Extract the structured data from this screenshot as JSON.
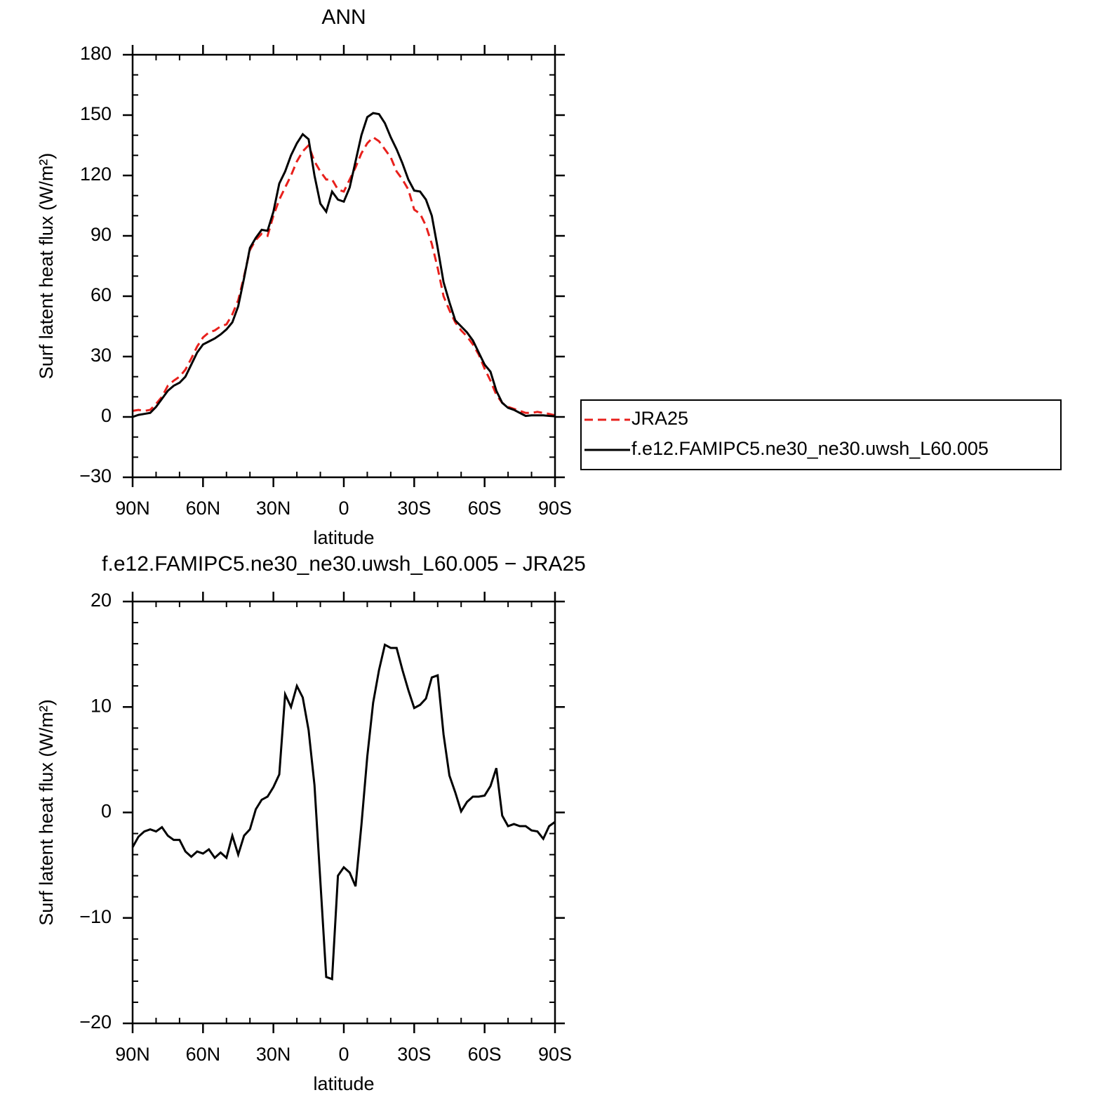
{
  "chart_data": [
    {
      "type": "line",
      "title": "ANN",
      "xlabel": "latitude",
      "ylabel": "Surf latent heat flux (W/m²)",
      "x": [
        90,
        87.5,
        85,
        82.5,
        80,
        77.5,
        75,
        72.5,
        70,
        67.5,
        65,
        62.5,
        60,
        57.5,
        55,
        52.5,
        50,
        47.5,
        45,
        42.5,
        40,
        37.5,
        35,
        32.5,
        30,
        27.5,
        25,
        22.5,
        20,
        17.5,
        15,
        12.5,
        10,
        7.5,
        5,
        2.5,
        0,
        -2.5,
        -5,
        -7.5,
        -10,
        -12.5,
        -15,
        -17.5,
        -20,
        -22.5,
        -25,
        -27.5,
        -30,
        -32.5,
        -35,
        -37.5,
        -40,
        -42.5,
        -45,
        -47.5,
        -50,
        -52.5,
        -55,
        -57.5,
        -60,
        -62.5,
        -65,
        -67.5,
        -70,
        -72.5,
        -75,
        -77.5,
        -80,
        -82.5,
        -85,
        -87.5,
        -90
      ],
      "series": [
        {
          "name": "JRA25",
          "color": "#e8201c",
          "dash": "dashed",
          "values": [
            3,
            3.5,
            3,
            3.5,
            6.5,
            10,
            15.5,
            18,
            20,
            23.5,
            29,
            35,
            39.5,
            42,
            43,
            45,
            46,
            51,
            58,
            70,
            83,
            88,
            91,
            90,
            100,
            108,
            114,
            120,
            127,
            132,
            135,
            127,
            122,
            118,
            118,
            113,
            112,
            118,
            124,
            131,
            136,
            139,
            137,
            133,
            129,
            122,
            118,
            113,
            103,
            101,
            95,
            86,
            74,
            60,
            53,
            47,
            43,
            40,
            36,
            31,
            24,
            18,
            11,
            7,
            5,
            4,
            3,
            2,
            2,
            2.5,
            2,
            1.5,
            0.8
          ]
        },
        {
          "name": "f.e12.FAMIPC5.ne30_ne30.uwsh_L60.005",
          "color": "#000000",
          "dash": "solid",
          "values": [
            0,
            1,
            1.5,
            2,
            5,
            9,
            13,
            15.5,
            17,
            20,
            26,
            32,
            36,
            37.5,
            39,
            41,
            43.5,
            47,
            55,
            69,
            84,
            89,
            93,
            92.5,
            102,
            116,
            122,
            130,
            136,
            140.5,
            138,
            120,
            106,
            102,
            112,
            108,
            107,
            114,
            127,
            140,
            149,
            151,
            150.5,
            146,
            139,
            133,
            126,
            118,
            112.5,
            112,
            108,
            100,
            84,
            67,
            57,
            48,
            45,
            42,
            38,
            32,
            26,
            22.5,
            13,
            7,
            4.5,
            3.5,
            2,
            0.5,
            0.8,
            0.8,
            0.8,
            0.5,
            0.3
          ]
        }
      ],
      "xlim": [
        90,
        -90
      ],
      "xticks": [
        {
          "value": 90,
          "label": "90N"
        },
        {
          "value": 60,
          "label": "60N"
        },
        {
          "value": 30,
          "label": "30N"
        },
        0,
        {
          "value": -30,
          "label": "30S"
        },
        {
          "value": -60,
          "label": "60S"
        },
        {
          "value": -90,
          "label": "90S"
        }
      ],
      "xminorticks": [
        80,
        70,
        50,
        40,
        20,
        10,
        -10,
        -20,
        -40,
        -50,
        -70,
        -80
      ],
      "ylim": [
        -30,
        180
      ],
      "yticks": [
        -30,
        0,
        30,
        60,
        90,
        120,
        150,
        180
      ],
      "yminorticks": [
        -20,
        -10,
        10,
        20,
        40,
        50,
        70,
        80,
        100,
        110,
        130,
        140,
        160,
        170
      ],
      "legend": "right"
    },
    {
      "type": "line",
      "title": "f.e12.FAMIPC5.ne30_ne30.uwsh_L60.005 − JRA25",
      "xlabel": "latitude",
      "ylabel": "Surf latent heat flux (W/m²)",
      "x": [
        90,
        87.5,
        85,
        82.5,
        80,
        77.5,
        75,
        72.5,
        70,
        67.5,
        65,
        62.5,
        60,
        57.5,
        55,
        52.5,
        50,
        47.5,
        45,
        42.5,
        40,
        37.5,
        35,
        32.5,
        30,
        27.5,
        25,
        22.5,
        20,
        17.5,
        15,
        12.5,
        10,
        7.5,
        5,
        2.5,
        0,
        -2.5,
        -5,
        -7.5,
        -10,
        -12.5,
        -15,
        -17.5,
        -20,
        -22.5,
        -25,
        -27.5,
        -30,
        -32.5,
        -35,
        -37.5,
        -40,
        -42.5,
        -45,
        -47.5,
        -50,
        -52.5,
        -55,
        -57.5,
        -60,
        -62.5,
        -65,
        -67.5,
        -70,
        -72.5,
        -75,
        -77.5,
        -80,
        -82.5,
        -85,
        -87.5,
        -90
      ],
      "color": "#000000",
      "values": [
        -3.3,
        -2.3,
        -1.8,
        -1.6,
        -1.8,
        -1.4,
        -2.2,
        -2.6,
        -2.6,
        -3.7,
        -4.2,
        -3.7,
        -3.9,
        -3.5,
        -4.3,
        -3.8,
        -4.3,
        -2.2,
        -4.0,
        -2.2,
        -1.6,
        0.3,
        1.2,
        1.5,
        2.4,
        3.6,
        11.2,
        10.0,
        12.0,
        10.9,
        7.8,
        2.6,
        -6.5,
        -15.6,
        -15.8,
        -6.0,
        -5.2,
        -5.7,
        -7.0,
        -1.2,
        5.3,
        10.4,
        13.5,
        15.9,
        15.6,
        15.6,
        13.5,
        11.6,
        9.9,
        10.2,
        10.8,
        12.8,
        13.0,
        7.4,
        3.5,
        1.9,
        0.1,
        1.0,
        1.5,
        1.5,
        1.6,
        2.5,
        4.2,
        -0.3,
        -1.3,
        -1.1,
        -1.3,
        -1.3,
        -1.7,
        -1.8,
        -2.5,
        -1.3,
        -0.9
      ],
      "xlim": [
        90,
        -90
      ],
      "xticks": [
        {
          "value": 90,
          "label": "90N"
        },
        {
          "value": 60,
          "label": "60N"
        },
        {
          "value": 30,
          "label": "30N"
        },
        0,
        {
          "value": -30,
          "label": "30S"
        },
        {
          "value": -60,
          "label": "60S"
        },
        {
          "value": -90,
          "label": "90S"
        }
      ],
      "xminorticks": [
        80,
        70,
        50,
        40,
        20,
        10,
        -10,
        -20,
        -40,
        -50,
        -70,
        -80
      ],
      "ylim": [
        -20,
        20
      ],
      "yticks": [
        -20,
        -10,
        0,
        10,
        20
      ],
      "yminorticks": [
        -18,
        -16,
        -14,
        -12,
        -8,
        -6,
        -4,
        -2,
        2,
        4,
        6,
        8,
        12,
        14,
        16,
        18
      ]
    }
  ]
}
